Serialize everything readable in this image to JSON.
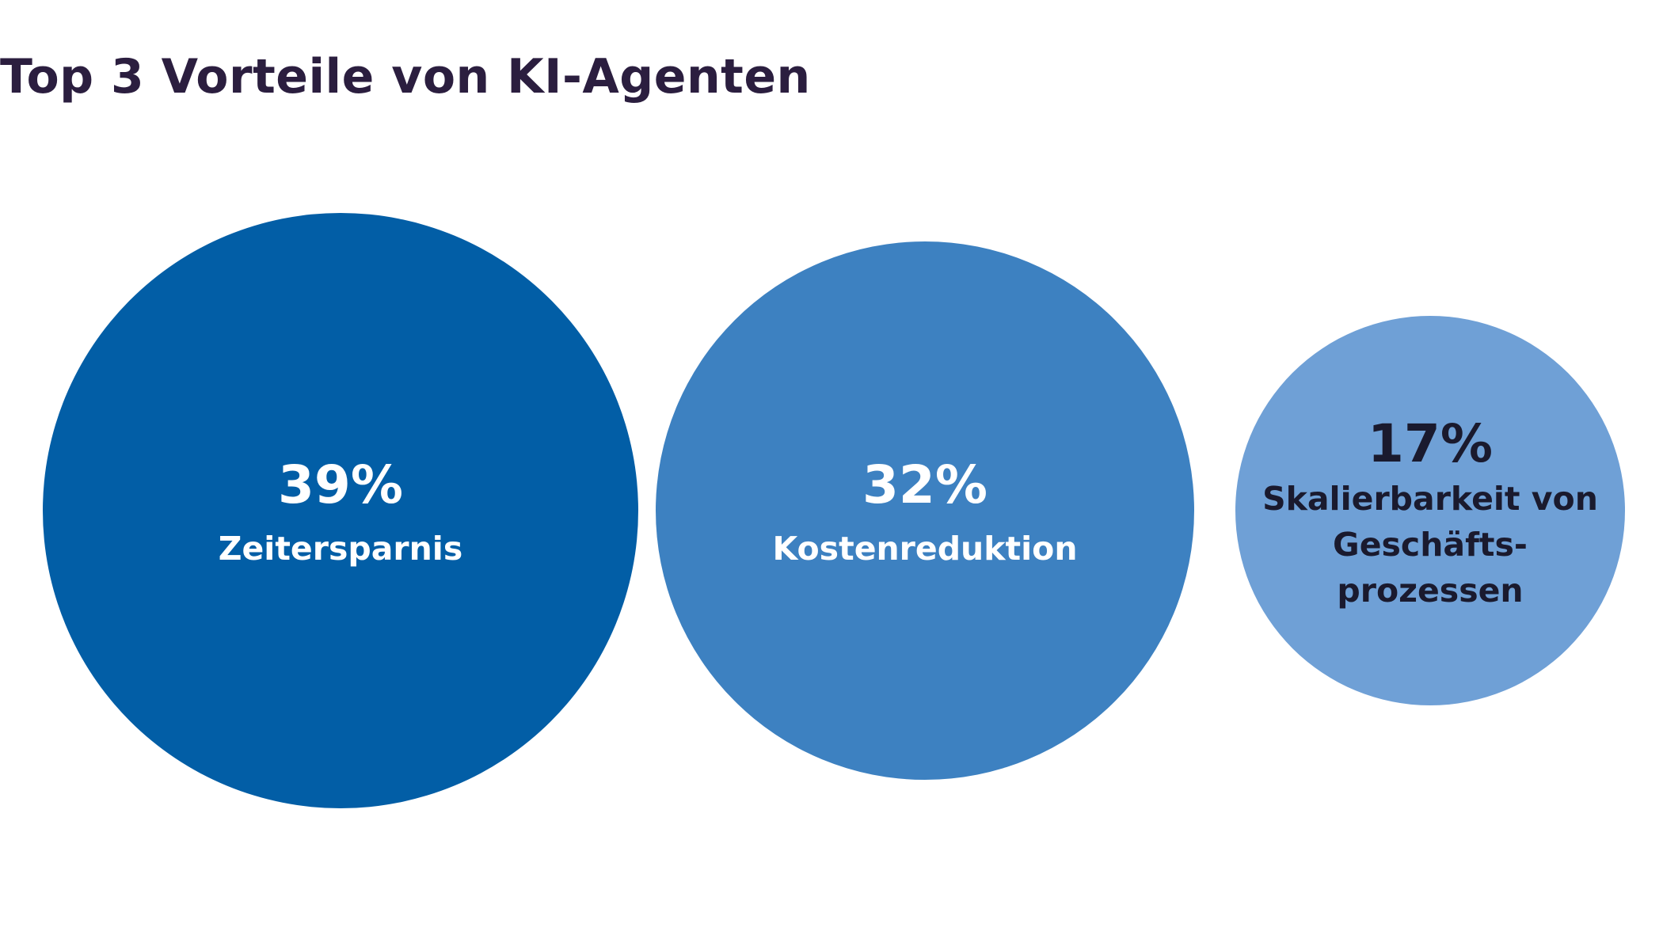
{
  "chart_data": {
    "type": "bubble",
    "title": "Top 3 Vorteile von KI-Agenten",
    "categories": [
      "Zeitersparnis",
      "Kostenreduktion",
      "Skalierbarkeit von Geschäfts-prozessen"
    ],
    "values": [
      39,
      32,
      17
    ],
    "unit": "%",
    "value_labels": [
      "39%",
      "32%",
      "17%"
    ],
    "category_label_lines": [
      [
        "Zeitersparnis"
      ],
      [
        "Kostenreduktion"
      ],
      [
        "Skalierbarkeit von",
        "Geschäfts-",
        "prozessen"
      ]
    ],
    "colors": [
      "#025ea6",
      "#3d81c1",
      "#6fa0d6"
    ],
    "label_colors": [
      "#ffffff",
      "#ffffff",
      "#1a1a2e"
    ],
    "xlabel": "",
    "ylabel": "",
    "grid": false,
    "legend": "none"
  }
}
